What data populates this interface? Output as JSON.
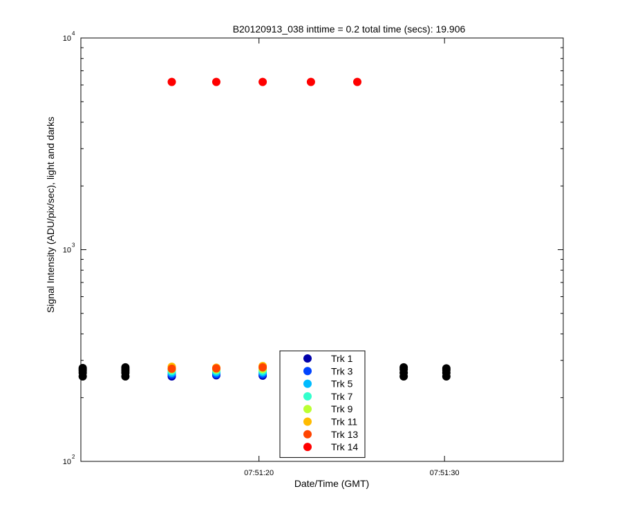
{
  "chart_data": {
    "type": "scatter",
    "title": "B20120913_038 inttime = 0.2 total time (secs): 19.906",
    "xlabel": "Date/Time (GMT)",
    "ylabel": "Signal Intensity (ADU/pix/sec), light and darks",
    "yscale": "log",
    "xlim": [
      "07:51:10.4",
      "07:51:36.4"
    ],
    "ylim": [
      100,
      10000
    ],
    "x_ticks": [
      "07:51:20",
      "07:51:30"
    ],
    "y_ticks": [
      {
        "base": "10",
        "exp": "2",
        "value": 100
      },
      {
        "base": "10",
        "exp": "3",
        "value": 1000
      },
      {
        "base": "10",
        "exp": "4",
        "value": 10000
      }
    ],
    "grid": false,
    "legend_position": "bottom-center",
    "series": [
      {
        "name": "Trk 1",
        "color": "#0000aa",
        "x": [
          "07:51:15.3",
          "07:51:17.7",
          "07:51:20.2",
          "07:51:22.8",
          "07:51:25.3"
        ],
        "y": [
          252,
          255,
          254,
          253,
          254
        ]
      },
      {
        "name": "Trk 3",
        "color": "#0044ff",
        "x": [
          "07:51:15.3",
          "07:51:17.7",
          "07:51:20.2",
          "07:51:22.8",
          "07:51:25.3"
        ],
        "y": [
          257,
          258,
          258,
          257,
          258
        ]
      },
      {
        "name": "Trk 5",
        "color": "#00bbff",
        "x": [
          "07:51:15.3",
          "07:51:17.7",
          "07:51:20.2",
          "07:51:22.8",
          "07:51:25.3"
        ],
        "y": [
          262,
          263,
          263,
          262,
          263
        ]
      },
      {
        "name": "Trk 7",
        "color": "#33ffcc",
        "x": [
          "07:51:15.3",
          "07:51:17.7",
          "07:51:20.2",
          "07:51:22.8",
          "07:51:25.3"
        ],
        "y": [
          267,
          268,
          268,
          267,
          268
        ]
      },
      {
        "name": "Trk 9",
        "color": "#bbff33",
        "x": [
          "07:51:15.3",
          "07:51:17.7",
          "07:51:20.2",
          "07:51:22.8",
          "07:51:25.3"
        ],
        "y": [
          272,
          272,
          273,
          272,
          272
        ]
      },
      {
        "name": "Trk 11",
        "color": "#ffbb00",
        "x": [
          "07:51:15.3",
          "07:51:17.7",
          "07:51:20.2",
          "07:51:22.8",
          "07:51:25.3"
        ],
        "y": [
          280,
          277,
          282,
          278,
          278
        ]
      },
      {
        "name": "Trk 13",
        "color": "#ff4400",
        "x": [
          "07:51:15.3",
          "07:51:17.7",
          "07:51:20.2",
          "07:51:22.8",
          "07:51:25.3"
        ],
        "y": [
          274,
          275,
          278,
          276,
          275
        ]
      },
      {
        "name": "Trk 14",
        "color": "#ff0000",
        "x": [
          "07:51:15.3",
          "07:51:17.7",
          "07:51:20.2",
          "07:51:22.8",
          "07:51:25.3"
        ],
        "y": [
          6200,
          6200,
          6200,
          6200,
          6200
        ]
      },
      {
        "color": "#000000",
        "x": [
          "07:51:10.5",
          "07:51:10.5",
          "07:51:10.5",
          "07:51:10.5",
          "07:51:10.5",
          "07:51:12.8",
          "07:51:12.8",
          "07:51:12.8",
          "07:51:12.8",
          "07:51:12.8",
          "07:51:27.8",
          "07:51:27.8",
          "07:51:27.8",
          "07:51:27.8",
          "07:51:30.1",
          "07:51:30.1",
          "07:51:30.1",
          "07:51:30.1"
        ],
        "y": [
          252,
          262,
          268,
          272,
          276,
          252,
          262,
          268,
          273,
          278,
          252,
          262,
          272,
          278,
          252,
          262,
          270,
          275
        ]
      }
    ]
  }
}
